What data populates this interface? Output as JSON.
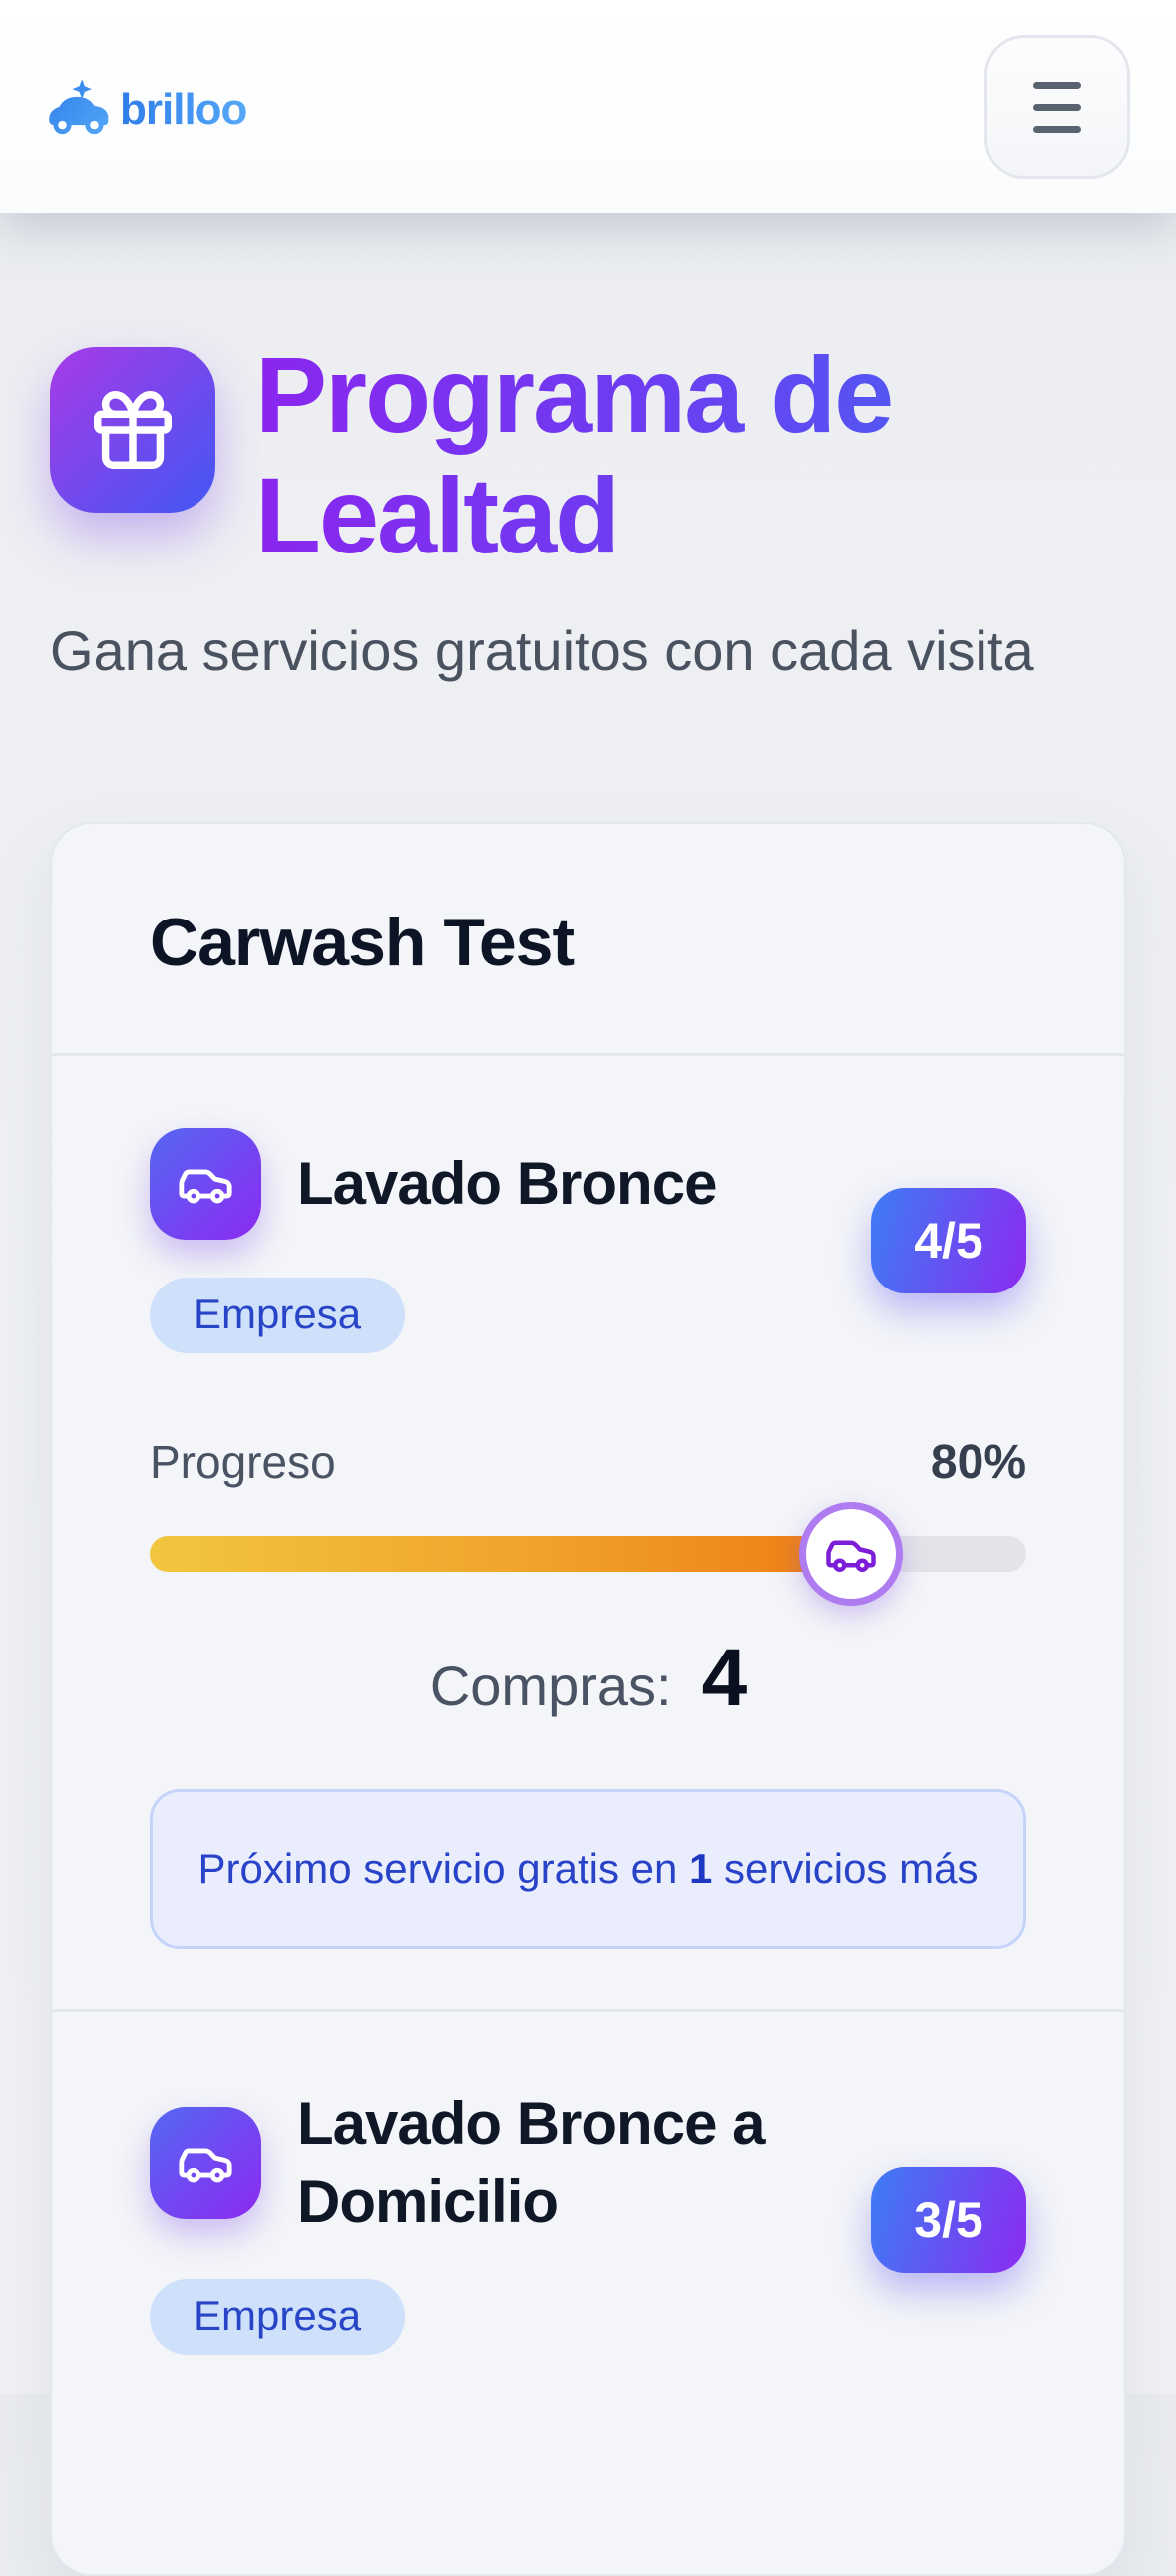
{
  "header": {
    "logo_text": "brilloo",
    "menu_icon": "hamburger-icon"
  },
  "hero": {
    "title": "Programa de Lealtad",
    "subtitle": "Gana servicios gratuitos con cada visita",
    "icon": "gift-icon"
  },
  "card": {
    "business_name": "Carwash Test",
    "programs": [
      {
        "name": "Lavado Bronce",
        "icon": "car-icon",
        "type_badge": "Empresa",
        "count": "4/5",
        "progress_label": "Progreso",
        "progress_percent": "80%",
        "progress_value": 80,
        "purchases_label": "Compras:",
        "purchases_value": "4",
        "next_reward_prefix": "Próximo servicio gratis en ",
        "next_reward_count": "1",
        "next_reward_suffix": " servicios más"
      },
      {
        "name": "Lavado Bronce a Domicilio",
        "icon": "car-icon",
        "type_badge": "Empresa",
        "count": "3/5"
      }
    ]
  },
  "colors": {
    "accent_purple": "#8b2bf0",
    "accent_blue": "#3d7cf5",
    "title_gradient_start": "#8a26ef",
    "title_gradient_end": "#4b5ff2",
    "logo_blue": "#3d87ee",
    "progress_start": "#f2c63e",
    "progress_end": "#ee7c14",
    "progress_track": "#e3e4e9",
    "marker_ring": "#ae7bf0",
    "pill_bg": "#cfe0fb",
    "pill_text": "#2745c6",
    "info_bg": "#e9edfc",
    "info_border": "#c6d4f9",
    "info_text": "#2843c8",
    "page_bg": "#edeff3",
    "card_bg": "#f3f5f8",
    "text_dark": "#101828",
    "text_gray": "#4a5363"
  }
}
